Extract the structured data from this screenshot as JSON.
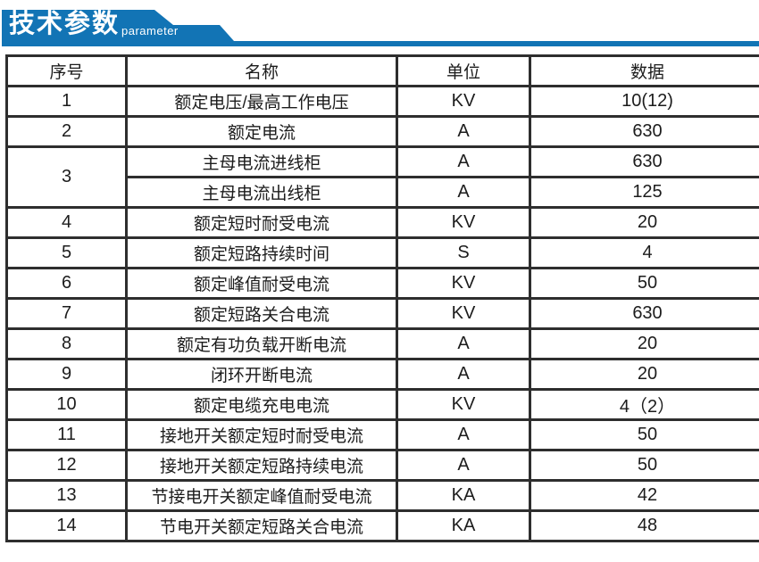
{
  "banner": {
    "title": "技术参数",
    "subtitle": "parameter",
    "color": "#1274b5"
  },
  "table": {
    "headers": [
      "序号",
      "名称",
      "单位",
      "数据"
    ],
    "rows": [
      {
        "no": "1",
        "span": 1,
        "name": "额定电压/最高工作电压",
        "unit": "KV",
        "value": "10(12)"
      },
      {
        "no": "2",
        "span": 1,
        "name": "额定电流",
        "unit": "A",
        "value": "630"
      },
      {
        "no": "3",
        "span": 2,
        "name": "主母电流进线柜",
        "unit": "A",
        "value": "630"
      },
      {
        "no": null,
        "span": 0,
        "name": "主母电流出线柜",
        "unit": "A",
        "value": "125"
      },
      {
        "no": "4",
        "span": 1,
        "name": "额定短时耐受电流",
        "unit": "KV",
        "value": "20"
      },
      {
        "no": "5",
        "span": 1,
        "name": "额定短路持续时间",
        "unit": "S",
        "value": "4"
      },
      {
        "no": "6",
        "span": 1,
        "name": "额定峰值耐受电流",
        "unit": "KV",
        "value": "50"
      },
      {
        "no": "7",
        "span": 1,
        "name": "额定短路关合电流",
        "unit": "KV",
        "value": "630"
      },
      {
        "no": "8",
        "span": 1,
        "name": "额定有功负载开断电流",
        "unit": "A",
        "value": "20"
      },
      {
        "no": "9",
        "span": 1,
        "name": "闭环开断电流",
        "unit": "A",
        "value": "20"
      },
      {
        "no": "10",
        "span": 1,
        "name": "额定电缆充电电流",
        "unit": "KV",
        "value": "4（2）"
      },
      {
        "no": "11",
        "span": 1,
        "name": "接地开关额定短时耐受电流",
        "unit": "A",
        "value": "50"
      },
      {
        "no": "12",
        "span": 1,
        "name": "接地开关额定短路持续电流",
        "unit": "A",
        "value": "50"
      },
      {
        "no": "13",
        "span": 1,
        "name": "节接电开关额定峰值耐受电流",
        "unit": "KA",
        "value": "42"
      },
      {
        "no": "14",
        "span": 1,
        "name": "节电开关额定短路关合电流",
        "unit": "KA",
        "value": "48"
      }
    ]
  }
}
